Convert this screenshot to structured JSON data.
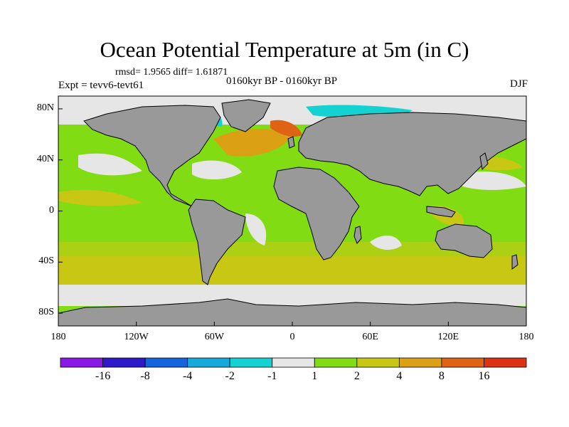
{
  "title": "Ocean Potential Temperature at 5m (in C)",
  "stats": "rmsd= 1.9565  diff= 1.61871",
  "experiment": "Expt = tevv6-tevt61",
  "period": "0160kyr BP - 0160kyr BP",
  "season": "DJF",
  "lat_labels": [
    "80N",
    "40N",
    "0",
    "40S",
    "80S"
  ],
  "lon_labels": [
    "180",
    "120W",
    "60W",
    "0",
    "60E",
    "120E",
    "180"
  ],
  "colorbar": {
    "colors": [
      "#8a19e6",
      "#2d19c8",
      "#1464dc",
      "#14aadc",
      "#14d2d2",
      "#e6e6e6",
      "#82dc14",
      "#c8c814",
      "#dca014",
      "#dc6414",
      "#dc3214"
    ],
    "labels": [
      "-16",
      "-8",
      "-4",
      "-2",
      "-1",
      "1",
      "2",
      "4",
      "8",
      "16"
    ]
  },
  "legend_colors": {
    "land": "#999999",
    "near_zero": "#e6e6e6"
  }
}
